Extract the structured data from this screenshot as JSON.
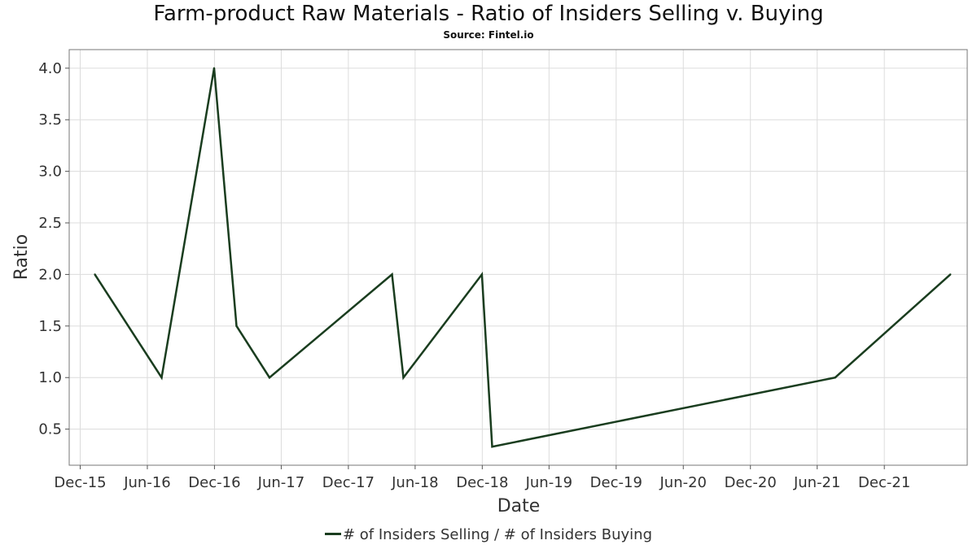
{
  "chart_data": {
    "type": "line",
    "title": "Farm-product Raw Materials - Ratio of Insiders Selling v. Buying",
    "subtitle": "Source: Fintel.io",
    "xlabel": "Date",
    "ylabel": "Ratio",
    "x_ticks": [
      "Dec-15",
      "Jun-16",
      "Dec-16",
      "Jun-17",
      "Dec-17",
      "Jun-18",
      "Dec-18",
      "Jun-19",
      "Dec-19",
      "Jun-20",
      "Dec-20",
      "Jun-21",
      "Dec-21"
    ],
    "y_ticks": [
      "0.5",
      "1.0",
      "1.5",
      "2.0",
      "2.5",
      "3.0",
      "3.5",
      "4.0"
    ],
    "xlim": [
      "2015-11-01",
      "2022-07-15"
    ],
    "ylim": [
      0.15,
      4.18
    ],
    "grid": true,
    "legend_position": "bottom-center",
    "series": [
      {
        "name": "# of Insiders Selling / # of Insiders Buying",
        "color": "#1a3d1f",
        "points": [
          {
            "x": "2016-01-10",
            "y": 2.0
          },
          {
            "x": "2016-07-10",
            "y": 1.0
          },
          {
            "x": "2016-11-30",
            "y": 4.0
          },
          {
            "x": "2017-01-30",
            "y": 1.5
          },
          {
            "x": "2017-04-30",
            "y": 1.0
          },
          {
            "x": "2018-03-30",
            "y": 2.0
          },
          {
            "x": "2018-04-30",
            "y": 1.0
          },
          {
            "x": "2018-11-30",
            "y": 2.0
          },
          {
            "x": "2018-12-28",
            "y": 0.33
          },
          {
            "x": "2021-07-20",
            "y": 1.0
          },
          {
            "x": "2022-05-30",
            "y": 2.0
          }
        ]
      }
    ]
  }
}
